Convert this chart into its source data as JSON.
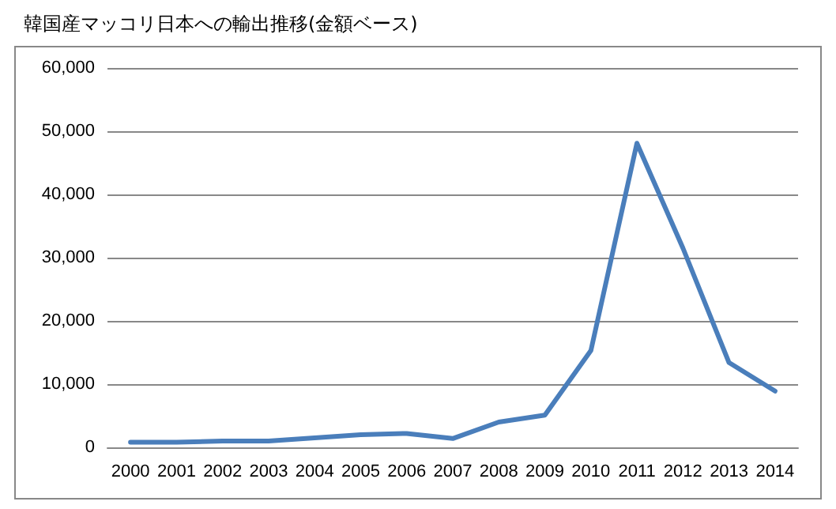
{
  "chart_data": {
    "type": "line",
    "title": "韓国産マッコリ日本への輸出推移(金額ベース)",
    "categories": [
      "2000",
      "2001",
      "2002",
      "2003",
      "2004",
      "2005",
      "2006",
      "2007",
      "2008",
      "2009",
      "2010",
      "2011",
      "2012",
      "2013",
      "2014"
    ],
    "series": [
      {
        "color": "#4a7ebb",
        "values": [
          800,
          800,
          1000,
          1000,
          1500,
          2000,
          2200,
          1400,
          4000,
          5100,
          15300,
          48100,
          31500,
          13400,
          8900
        ]
      }
    ],
    "ylim": [
      0,
      60000
    ],
    "yticks": [
      0,
      {
        "value": 10000,
        "label": "10,000"
      },
      {
        "value": 20000,
        "label": "20,000"
      },
      {
        "value": 30000,
        "label": "30,000"
      },
      {
        "value": 40000,
        "label": "40,000"
      },
      {
        "value": 50000,
        "label": "50,000"
      },
      {
        "value": 60000,
        "label": "60,000"
      }
    ],
    "grid": "y",
    "marker": "none",
    "line_style": "solid"
  }
}
